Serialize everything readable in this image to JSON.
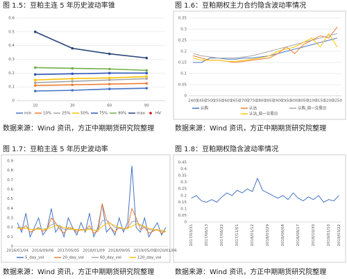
{
  "chart_data": [
    {
      "type": "line",
      "title": "图 1.5：豆粕主连 5 年历史波动率锥",
      "source": "数据来源：Wind 资讯，方正中期期货研究院整理",
      "categories": [
        10,
        30,
        60,
        90
      ],
      "ylim": [
        0,
        0.6
      ],
      "yticks": [
        0,
        0.1,
        0.2,
        0.3,
        0.4,
        0.5,
        0.6
      ],
      "grid": true,
      "markers": true,
      "legend": "bottom",
      "series": [
        {
          "name": "min",
          "color": "#4472c4",
          "values": [
            0.07,
            0.075,
            0.085,
            0.09
          ]
        },
        {
          "name": "10%",
          "color": "#ed7d31",
          "values": [
            0.11,
            0.115,
            0.12,
            0.125
          ]
        },
        {
          "name": "25%",
          "color": "#a5a5a5",
          "values": [
            0.13,
            0.14,
            0.15,
            0.16
          ]
        },
        {
          "name": "50%",
          "color": "#ffc000",
          "values": [
            0.15,
            0.16,
            0.165,
            0.175
          ]
        },
        {
          "name": "75%",
          "color": "#2f55b8",
          "values": [
            0.19,
            0.195,
            0.2,
            0.2
          ]
        },
        {
          "name": "90%",
          "color": "#70ad47",
          "values": [
            0.24,
            0.235,
            0.23,
            0.22
          ]
        },
        {
          "name": "max",
          "color": "#264478",
          "values": [
            0.5,
            0.38,
            0.34,
            0.31
          ]
        },
        {
          "name": "HV",
          "color": "#e00000",
          "marker_only": true,
          "values": [
            null,
            null,
            null,
            null
          ]
        }
      ]
    },
    {
      "type": "line",
      "title": "图 1.6：豆粕期权主力合约隐含波动率情况",
      "source": "数据来源：Wind 资讯，方正中期期货研究院整理",
      "categories": [
        2400,
        2450,
        2500,
        2550,
        2600,
        2650,
        2700,
        2750,
        2800,
        2850,
        2900,
        2950,
        3000,
        3050,
        3100,
        3150,
        3200,
        3250
      ],
      "ylim": [
        0,
        0.35
      ],
      "yticks": [
        0,
        0.05,
        0.1,
        0.15,
        0.2,
        0.25,
        0.3,
        0.35
      ],
      "grid": true,
      "markers": false,
      "legend": "bottom",
      "series": [
        {
          "name": "认购",
          "color": "#4472c4",
          "values": [
            0.15,
            0.15,
            0.17,
            0.17,
            0.165,
            0.165,
            0.17,
            0.17,
            0.175,
            0.18,
            0.19,
            0.2,
            0.21,
            0.22,
            0.23,
            0.24,
            0.25,
            0.26
          ]
        },
        {
          "name": "认沽",
          "color": "#ed7d31",
          "values": [
            0.18,
            0.17,
            0.16,
            0.16,
            0.155,
            0.15,
            0.155,
            0.16,
            0.165,
            0.17,
            0.19,
            0.22,
            0.19,
            0.23,
            0.25,
            0.27,
            0.26,
            0.31
          ]
        },
        {
          "name": "认购_前一交易日",
          "color": "#a5a5a5",
          "values": [
            0.19,
            0.18,
            0.175,
            0.17,
            0.17,
            0.17,
            0.175,
            0.18,
            0.19,
            0.2,
            0.21,
            0.22,
            0.23,
            0.24,
            0.25,
            0.26,
            0.27,
            0.28
          ]
        },
        {
          "name": "认沽_前一交易日",
          "color": "#ffc000",
          "values": [
            0.17,
            0.16,
            0.16,
            0.16,
            0.155,
            0.155,
            0.16,
            0.165,
            0.17,
            0.18,
            0.2,
            0.21,
            0.22,
            0.24,
            0.26,
            0.22,
            0.28,
            0.22
          ]
        }
      ]
    },
    {
      "type": "line",
      "title": "图 1.7：豆粕主连 5 年历史波动率",
      "source": "数据来源：Wind 资讯，方正中期期货研究院整理",
      "categories": [
        "2016/01/04",
        null,
        null,
        null,
        null,
        null,
        "2016/09/06",
        null,
        null,
        null,
        null,
        null,
        "2017/05/05",
        null,
        null,
        null,
        null,
        null,
        "2018/01/09",
        null,
        null,
        null,
        null,
        null,
        "2018/09/05",
        null,
        null,
        null,
        null,
        null,
        "2019/05/09",
        null,
        null,
        null,
        null,
        "2020/01/06"
      ],
      "ylim": [
        0,
        0.9
      ],
      "yticks": [
        0,
        0.1,
        0.2,
        0.3,
        0.4,
        0.5,
        0.6,
        0.7,
        0.8,
        0.9
      ],
      "grid": false,
      "markers": false,
      "legend": "bottom",
      "series": [
        {
          "name": "5_day_vol",
          "color": "#4472c4",
          "values": [
            0.25,
            0.15,
            0.35,
            0.1,
            0.2,
            0.3,
            0.12,
            0.18,
            0.4,
            0.15,
            0.22,
            0.1,
            0.3,
            0.2,
            0.12,
            0.25,
            0.15,
            0.35,
            0.1,
            0.2,
            0.45,
            0.15,
            0.2,
            0.12,
            0.3,
            0.15,
            0.25,
            0.85,
            0.2,
            0.15,
            0.3,
            0.1,
            0.18,
            0.25,
            0.12,
            0.2
          ]
        },
        {
          "name": "20_day_vol",
          "color": "#ed7d31",
          "values": [
            0.2,
            0.18,
            0.22,
            0.15,
            0.17,
            0.2,
            0.16,
            0.18,
            0.3,
            0.25,
            0.18,
            0.14,
            0.2,
            0.19,
            0.15,
            0.18,
            0.17,
            0.22,
            0.14,
            0.16,
            0.45,
            0.28,
            0.2,
            0.15,
            0.2,
            0.18,
            0.2,
            0.4,
            0.3,
            0.18,
            0.2,
            0.14,
            0.16,
            0.18,
            0.14,
            0.16
          ]
        },
        {
          "name": "60_day_vol",
          "color": "#a5a5a5",
          "values": [
            0.2,
            0.2,
            0.19,
            0.18,
            0.18,
            0.19,
            0.18,
            0.19,
            0.23,
            0.24,
            0.21,
            0.18,
            0.18,
            0.18,
            0.17,
            0.17,
            0.18,
            0.19,
            0.17,
            0.17,
            0.27,
            0.28,
            0.24,
            0.2,
            0.19,
            0.18,
            0.19,
            0.26,
            0.27,
            0.22,
            0.2,
            0.18,
            0.17,
            0.17,
            0.16,
            0.16
          ]
        },
        {
          "name": "120_day_vol",
          "color": "#ffc000",
          "values": [
            0.19,
            0.19,
            0.19,
            0.18,
            0.18,
            0.18,
            0.18,
            0.18,
            0.2,
            0.22,
            0.21,
            0.2,
            0.19,
            0.18,
            0.18,
            0.17,
            0.17,
            0.18,
            0.17,
            0.17,
            0.21,
            0.24,
            0.24,
            0.22,
            0.2,
            0.19,
            0.19,
            0.21,
            0.24,
            0.23,
            0.21,
            0.19,
            0.18,
            0.17,
            0.17,
            0.16
          ]
        }
      ]
    },
    {
      "type": "line",
      "title": "图 1.8：豆粕期权隐含波动率情况",
      "source": "数据来源：Wind 资讯，方正中期期货研究院整理",
      "categories": [
        "2017/03/31",
        null,
        null,
        "2017/06/13",
        null,
        null,
        "2017/08/22",
        null,
        null,
        "2017/11/01",
        null,
        null,
        "2018/01/12",
        null,
        null,
        "2018/03/29",
        null,
        null,
        "2018/06/08",
        null,
        null,
        "2018/08/17",
        null,
        null,
        "2018/10/30",
        null,
        null,
        "2019/01/10",
        null,
        "2019/03/22"
      ],
      "ylim": [
        0,
        0.45
      ],
      "yticks": [
        0,
        0.05,
        0.1,
        0.15,
        0.2,
        0.25,
        0.3,
        0.35,
        0.4,
        0.45
      ],
      "grid": false,
      "markers": false,
      "rotate_x": true,
      "color": "#4472c4",
      "values": [
        0.18,
        0.2,
        0.16,
        0.15,
        0.17,
        0.15,
        0.19,
        0.22,
        0.2,
        0.24,
        0.22,
        0.25,
        0.23,
        0.33,
        0.24,
        0.22,
        0.2,
        0.18,
        0.2,
        0.17,
        0.22,
        0.18,
        0.16,
        0.19,
        0.17,
        0.2,
        0.15,
        0.17,
        0.16,
        0.2
      ]
    }
  ]
}
